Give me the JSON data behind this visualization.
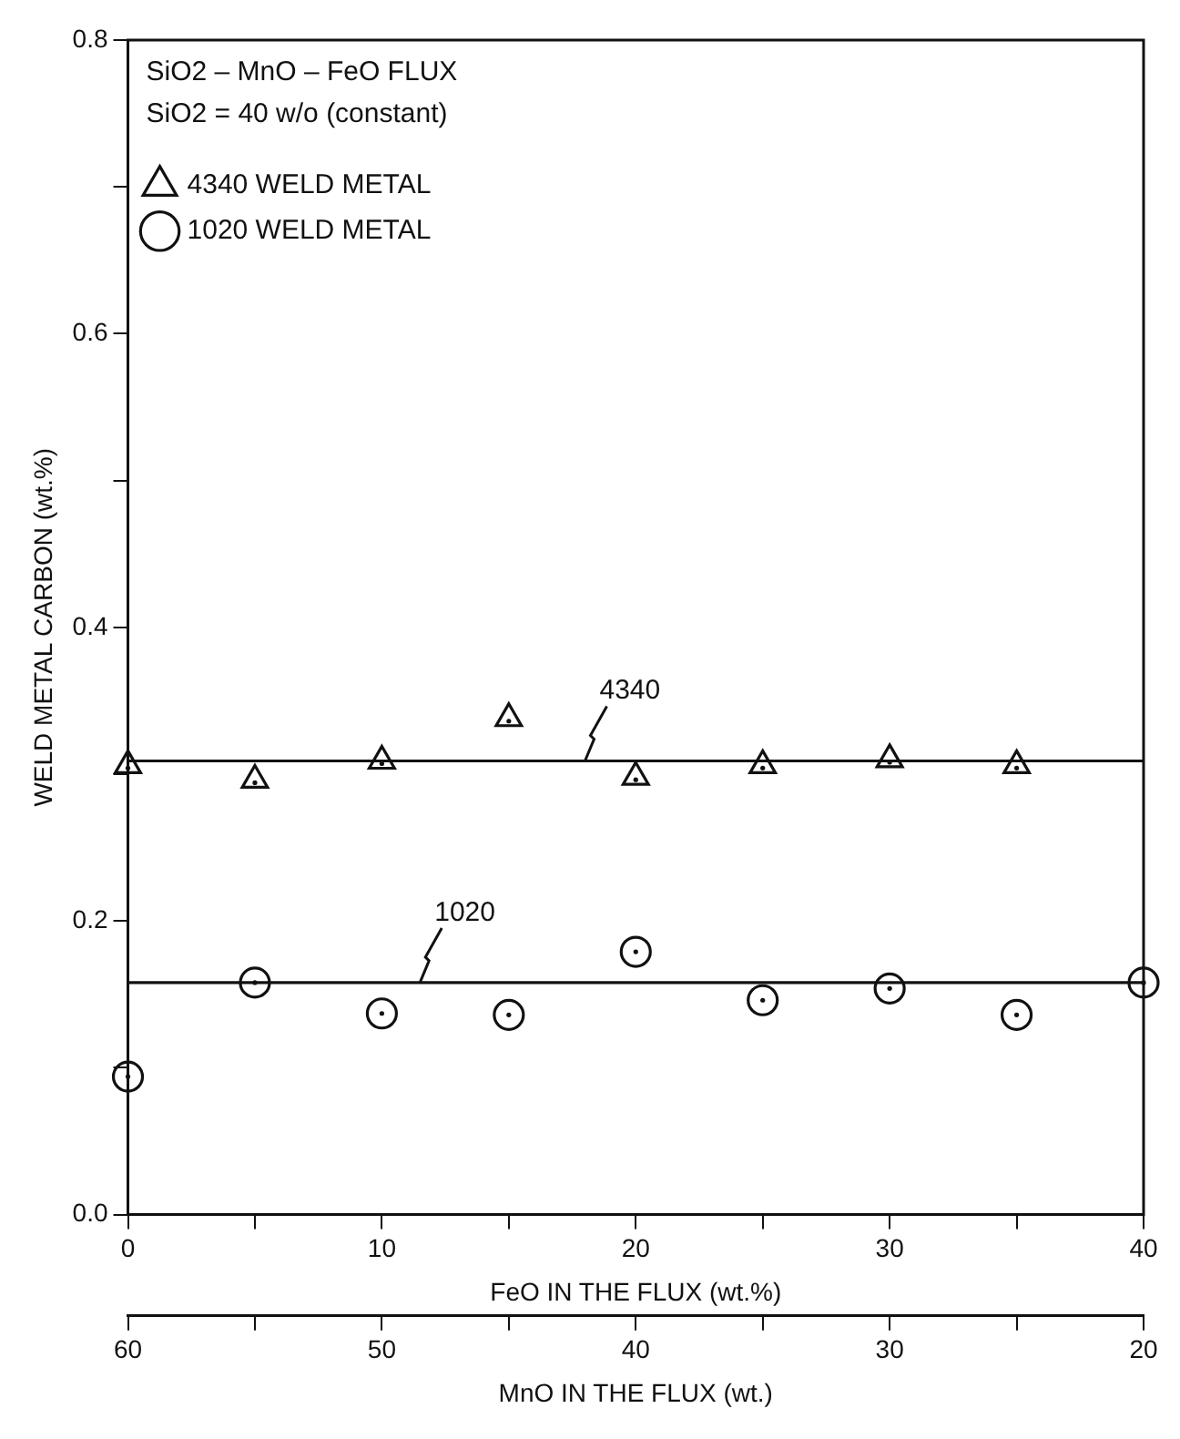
{
  "chart_data": {
    "type": "scatter",
    "xlabel": "FeO IN THE FLUX (wt.%)",
    "ylabel": "WELD METAL CARBON (wt.%)",
    "x2label": "MnO IN THE FLUX (wt.)",
    "x": [
      0,
      5,
      10,
      15,
      20,
      25,
      30,
      35,
      40
    ],
    "series": [
      {
        "name": "4340 WELD METAL",
        "color": "#111111",
        "marker": "triangle",
        "x": [
          0,
          5,
          10,
          15,
          20,
          25,
          30,
          35
        ],
        "values": [
          0.306,
          0.296,
          0.309,
          0.338,
          0.298,
          0.306,
          0.31,
          0.306
        ]
      },
      {
        "name": "1020 WELD METAL",
        "color": "#111111",
        "marker": "circle",
        "values": [
          0.094,
          0.158,
          0.137,
          0.136,
          0.179,
          0.146,
          0.154,
          0.136,
          0.158
        ]
      },
      {
        "type": "line",
        "color": "#111111",
        "marker": "none",
        "x": [
          0,
          40
        ],
        "values": [
          0.309,
          0.309
        ]
      },
      {
        "type": "line",
        "color": "#111111",
        "marker": "none",
        "x": [
          0,
          40
        ],
        "values": [
          0.158,
          0.158
        ]
      }
    ],
    "xlim": [
      0,
      40
    ],
    "xticks": [
      0,
      {
        "value": 5,
        "label": null
      },
      10,
      {
        "value": 15,
        "label": null
      },
      20,
      {
        "value": 25,
        "label": null
      },
      30,
      {
        "value": 35,
        "label": null
      },
      40
    ],
    "x2lim": [
      60,
      20
    ],
    "x2ticks": [
      60,
      {
        "value": 55,
        "label": null
      },
      50,
      {
        "value": 45,
        "label": null
      },
      40,
      {
        "value": 35,
        "label": null
      },
      30,
      {
        "value": 25,
        "label": null
      },
      20
    ],
    "ylim": [
      0,
      0.8
    ],
    "yticks": [
      {
        "value": 0,
        "label": "0.0"
      },
      {
        "value": 0.1,
        "label": null
      },
      0.2,
      {
        "value": 0.3,
        "label": null
      },
      0.4,
      {
        "value": 0.5,
        "label": null
      },
      0.6,
      {
        "value": 0.7,
        "label": null
      },
      0.8
    ],
    "legend": "top left",
    "grid": false,
    "annotations": [
      "SiO2 – MnO – FeO FLUX",
      "SiO2 = 40 w/o (constant)",
      {
        "text": "4340",
        "x": 18,
        "y": 0.309
      },
      {
        "text": "1020",
        "x": 11.5,
        "y": 0.158
      }
    ]
  }
}
